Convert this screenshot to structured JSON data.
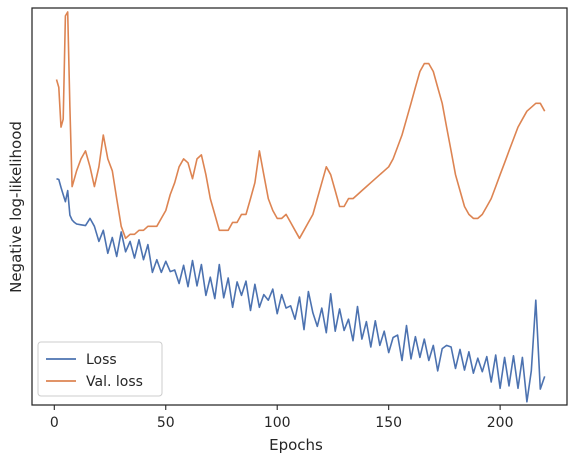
{
  "chart_data": {
    "type": "line",
    "xlabel": "Epochs",
    "ylabel": "Negative log-likelihood",
    "xlim": [
      -10,
      230
    ],
    "ylim": [
      0.0,
      1.0
    ],
    "xticks": [
      0,
      50,
      100,
      150,
      200
    ],
    "yticks_visible": false,
    "grid": false,
    "legend_position": "lower-left",
    "series": [
      {
        "name": "Loss",
        "color": "#4c72b0",
        "x": [
          1,
          2,
          3,
          4,
          5,
          6,
          7,
          8,
          9,
          10,
          12,
          14,
          16,
          18,
          20,
          22,
          24,
          26,
          28,
          30,
          32,
          34,
          36,
          38,
          40,
          42,
          44,
          46,
          48,
          50,
          52,
          54,
          56,
          58,
          60,
          62,
          64,
          66,
          68,
          70,
          72,
          74,
          76,
          78,
          80,
          82,
          84,
          86,
          88,
          90,
          92,
          94,
          96,
          98,
          100,
          102,
          104,
          106,
          108,
          110,
          112,
          114,
          116,
          118,
          120,
          122,
          124,
          126,
          128,
          130,
          132,
          134,
          136,
          138,
          140,
          142,
          144,
          146,
          148,
          150,
          152,
          154,
          156,
          158,
          160,
          162,
          164,
          166,
          168,
          170,
          172,
          174,
          176,
          178,
          180,
          182,
          184,
          186,
          188,
          190,
          192,
          194,
          196,
          198,
          200,
          202,
          204,
          206,
          208,
          210,
          212,
          214,
          216,
          218,
          220
        ],
        "values": [
          0.57,
          0.568,
          0.548,
          0.53,
          0.512,
          0.54,
          0.478,
          0.466,
          0.46,
          0.456,
          0.454,
          0.452,
          0.47,
          0.44,
          0.432,
          0.43,
          0.412,
          0.402,
          0.394,
          0.386,
          0.396,
          0.382,
          0.39,
          0.366,
          0.376,
          0.374,
          0.354,
          0.346,
          0.344,
          0.342,
          0.336,
          0.33,
          0.326,
          0.322,
          0.318,
          0.314,
          0.31,
          0.314,
          0.306,
          0.302,
          0.298,
          0.294,
          0.29,
          0.3,
          0.286,
          0.28,
          0.276,
          0.272,
          0.268,
          0.264,
          0.266,
          0.258,
          0.254,
          0.262,
          0.25,
          0.248,
          0.244,
          0.24,
          0.236,
          0.232,
          0.23,
          0.226,
          0.222,
          0.218,
          0.214,
          0.212,
          0.21,
          0.206,
          0.202,
          0.198,
          0.196,
          0.192,
          0.188,
          0.186,
          0.18,
          0.176,
          0.172,
          0.17,
          0.166,
          0.162,
          0.16,
          0.156,
          0.152,
          0.15,
          0.146,
          0.142,
          0.14,
          0.136,
          0.132,
          0.13,
          0.126,
          0.122,
          0.12,
          0.116,
          0.112,
          0.11,
          0.108,
          0.104,
          0.1,
          0.098,
          0.094,
          0.092,
          0.088,
          0.086,
          0.082,
          0.08,
          0.078,
          0.074,
          0.072,
          0.07,
          0.068,
          0.066,
          0.064,
          0.06,
          0.062
        ],
        "noise": [
          0,
          0,
          0,
          0,
          0,
          0,
          0,
          0,
          0,
          0,
          0,
          0,
          0,
          0.01,
          -0.02,
          0.01,
          -0.03,
          0.02,
          -0.02,
          0.05,
          -0.01,
          0.03,
          -0.02,
          0.05,
          -0.01,
          0.03,
          -0.02,
          0.02,
          -0.01,
          0.02,
          0,
          0.01,
          -0.02,
          0.03,
          -0.02,
          0.05,
          -0.01,
          0.04,
          -0.03,
          0.02,
          -0.03,
          0.06,
          -0.02,
          0.02,
          -0.04,
          0.03,
          0,
          0.04,
          -0.03,
          0.04,
          -0.02,
          0.02,
          0.01,
          0.03,
          -0.02,
          0.03,
          0,
          0.01,
          -0.02,
          0.04,
          -0.04,
          0.06,
          0.01,
          -0.02,
          0.03,
          -0.03,
          0.07,
          -0.02,
          0.04,
          -0.01,
          0.02,
          -0.03,
          0.06,
          -0.02,
          0.03,
          -0.03,
          0.04,
          -0.02,
          0.02,
          -0.03,
          0.01,
          0.02,
          -0.04,
          0.05,
          -0.03,
          0.03,
          -0.02,
          0.03,
          -0.02,
          0.02,
          -0.04,
          0.02,
          0.03,
          0.03,
          -0.02,
          0.03,
          -0.02,
          0.03,
          -0.02,
          0.02,
          -0.01,
          0.03,
          -0.03,
          0.04,
          -0.04,
          0.04,
          -0.03,
          0.05,
          -0.03,
          0.05,
          -0.06,
          0.02,
          0.2,
          -0.02,
          0.01
        ]
      },
      {
        "name": "Val. loss",
        "color": "#dd8452",
        "x": [
          1,
          2,
          3,
          4,
          5,
          6,
          7,
          8,
          9,
          10,
          12,
          14,
          16,
          18,
          20,
          22,
          24,
          26,
          28,
          30,
          32,
          34,
          36,
          38,
          40,
          42,
          44,
          46,
          48,
          50,
          52,
          54,
          56,
          58,
          60,
          62,
          64,
          66,
          68,
          70,
          72,
          74,
          76,
          78,
          80,
          82,
          84,
          86,
          88,
          90,
          92,
          94,
          96,
          98,
          100,
          102,
          104,
          106,
          108,
          110,
          112,
          114,
          116,
          118,
          120,
          122,
          124,
          126,
          128,
          130,
          132,
          134,
          136,
          138,
          140,
          142,
          144,
          146,
          148,
          150,
          152,
          154,
          156,
          158,
          160,
          162,
          164,
          166,
          168,
          170,
          172,
          174,
          176,
          178,
          180,
          182,
          184,
          186,
          188,
          190,
          192,
          194,
          196,
          198,
          200,
          202,
          204,
          206,
          208,
          210,
          212,
          214,
          216,
          218,
          220
        ],
        "values": [
          0.82,
          0.8,
          0.7,
          0.72,
          0.98,
          0.99,
          0.75,
          0.55,
          0.57,
          0.59,
          0.62,
          0.64,
          0.6,
          0.55,
          0.6,
          0.68,
          0.62,
          0.59,
          0.52,
          0.45,
          0.42,
          0.43,
          0.43,
          0.44,
          0.44,
          0.45,
          0.45,
          0.45,
          0.47,
          0.49,
          0.53,
          0.56,
          0.6,
          0.62,
          0.61,
          0.57,
          0.62,
          0.63,
          0.58,
          0.52,
          0.48,
          0.44,
          0.44,
          0.44,
          0.46,
          0.46,
          0.48,
          0.48,
          0.52,
          0.56,
          0.64,
          0.58,
          0.52,
          0.49,
          0.47,
          0.47,
          0.48,
          0.46,
          0.44,
          0.42,
          0.44,
          0.46,
          0.48,
          0.52,
          0.56,
          0.6,
          0.58,
          0.54,
          0.5,
          0.5,
          0.52,
          0.52,
          0.53,
          0.54,
          0.55,
          0.56,
          0.57,
          0.58,
          0.59,
          0.6,
          0.62,
          0.65,
          0.68,
          0.72,
          0.76,
          0.8,
          0.84,
          0.86,
          0.86,
          0.84,
          0.8,
          0.76,
          0.7,
          0.64,
          0.58,
          0.54,
          0.5,
          0.48,
          0.47,
          0.47,
          0.48,
          0.5,
          0.52,
          0.55,
          0.58,
          0.61,
          0.64,
          0.67,
          0.7,
          0.72,
          0.74,
          0.75,
          0.76,
          0.76,
          0.74
        ],
        "noise": [
          0,
          0,
          0,
          0,
          0,
          0,
          0,
          0,
          0,
          0,
          0,
          0,
          0,
          0,
          0,
          0,
          0,
          0,
          0,
          0,
          0,
          0,
          0,
          0,
          0,
          0,
          0,
          0,
          0,
          0,
          0,
          0,
          0,
          0,
          0,
          0,
          0,
          0,
          0,
          0,
          0,
          0,
          0,
          0,
          0,
          0,
          0,
          0,
          0,
          0,
          0,
          0,
          0,
          0,
          0,
          0,
          0,
          0,
          0,
          0,
          0,
          0,
          0,
          0,
          0,
          0,
          0,
          0,
          0,
          0,
          0,
          0,
          0,
          0,
          0,
          0,
          0,
          0,
          0,
          0,
          0,
          0,
          0,
          0,
          0,
          0,
          0,
          0,
          0,
          0,
          0,
          0,
          0,
          0,
          0,
          0,
          0,
          0,
          0,
          0,
          0,
          0,
          0,
          0,
          0,
          0,
          0,
          0,
          0,
          0,
          0,
          0,
          0,
          0,
          0
        ]
      }
    ]
  }
}
